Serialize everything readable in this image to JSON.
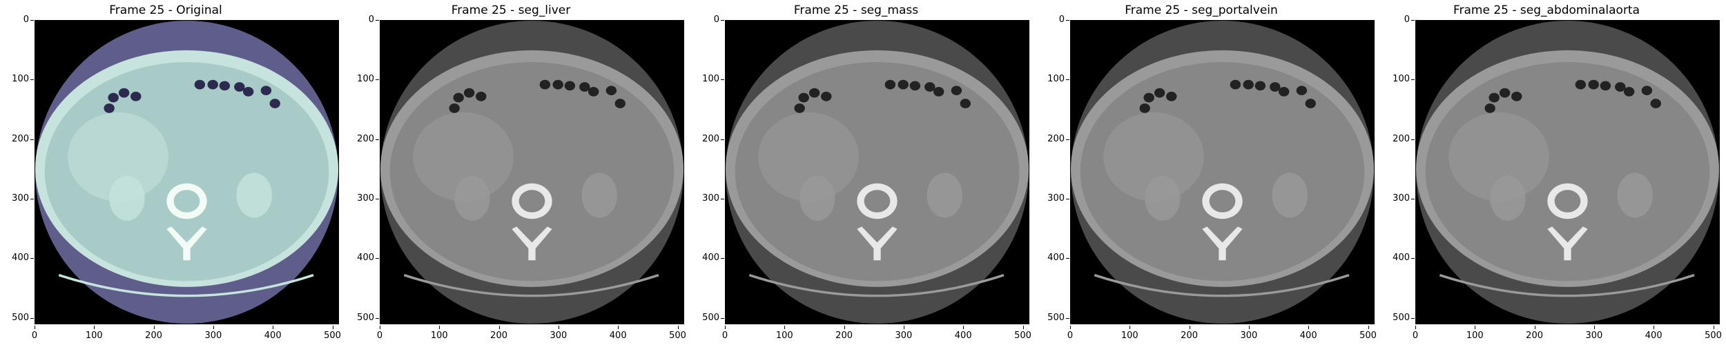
{
  "figure": {
    "panels": [
      {
        "title": "Frame 25 - Original",
        "tint": "#c6e3dd",
        "body_fill": "#a9cbc7",
        "ring_fill": "#5f5e8a",
        "bone_fill": "#f2fbf6",
        "dark_fill": "#2c2a4e"
      },
      {
        "title": "Frame 25 - seg_liver",
        "tint": "#9a9a9a",
        "body_fill": "#878787",
        "ring_fill": "#4a4a4a",
        "bone_fill": "#e8e8e8",
        "dark_fill": "#222222"
      },
      {
        "title": "Frame 25 - seg_mass",
        "tint": "#9a9a9a",
        "body_fill": "#878787",
        "ring_fill": "#4a4a4a",
        "bone_fill": "#e8e8e8",
        "dark_fill": "#222222"
      },
      {
        "title": "Frame 25 - seg_portalvein",
        "tint": "#9a9a9a",
        "body_fill": "#878787",
        "ring_fill": "#4a4a4a",
        "bone_fill": "#e8e8e8",
        "dark_fill": "#222222"
      },
      {
        "title": "Frame 25 - seg_abdominalaorta",
        "tint": "#9a9a9a",
        "body_fill": "#878787",
        "ring_fill": "#4a4a4a",
        "bone_fill": "#e8e8e8",
        "dark_fill": "#222222"
      }
    ],
    "y_ticks": [
      "0",
      "100",
      "200",
      "300",
      "400",
      "500"
    ],
    "x_ticks": [
      "0",
      "100",
      "200",
      "300",
      "400",
      "500"
    ],
    "axis_range": [
      0,
      511
    ]
  }
}
